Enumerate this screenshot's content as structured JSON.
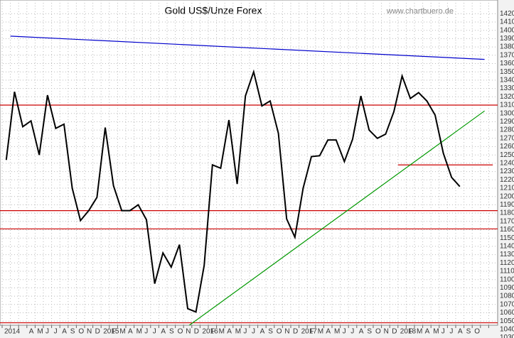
{
  "chart_data": {
    "type": "line",
    "title": "Gold US$/Unze Forex",
    "source": "www.chartbuero.de",
    "categories": [
      "2014",
      null,
      null,
      "A",
      "M",
      "J",
      "J",
      "A",
      "S",
      "O",
      "N",
      "D",
      "2015",
      "F",
      "M",
      "A",
      "M",
      "J",
      "J",
      "A",
      "S",
      "O",
      "N",
      "D",
      "2016",
      "F",
      "M",
      "A",
      "M",
      "J",
      "J",
      "A",
      "S",
      "O",
      "N",
      "D",
      "2017",
      "F",
      "M",
      "A",
      "M",
      "J",
      "J",
      "A",
      "S",
      "O",
      "N",
      "D",
      "2018",
      "F",
      "M",
      "A",
      "M",
      "J",
      "J",
      "A",
      "S",
      "O",
      null,
      null
    ],
    "values": [
      1244,
      1326,
      1284,
      1291,
      1250,
      1322,
      1282,
      1287,
      1210,
      1171,
      1183,
      1199,
      1283,
      1213,
      1183,
      1183,
      1190,
      1172,
      1095,
      1132,
      1115,
      1142,
      1065,
      1061,
      1117,
      1238,
      1234,
      1292,
      1215,
      1321,
      1350,
      1309,
      1315,
      1276,
      1173,
      1151,
      1210,
      1248,
      1249,
      1268,
      1268,
      1242,
      1269,
      1321,
      1280,
      1270,
      1275,
      1302,
      1345,
      1318,
      1325,
      1315,
      1298,
      1252,
      1223,
      1212,
      null,
      null,
      null,
      null
    ],
    "color": "#000000",
    "ylim": [
      1030,
      1420
    ],
    "yticks": [
      1030,
      1040,
      1050,
      1060,
      1070,
      1080,
      1090,
      1100,
      1110,
      1120,
      1130,
      1140,
      1150,
      1160,
      1170,
      1180,
      1190,
      1200,
      1210,
      1220,
      1230,
      1240,
      1250,
      1260,
      1270,
      1280,
      1290,
      1300,
      1310,
      1320,
      1330,
      1340,
      1350,
      1360,
      1370,
      1380,
      1390,
      1400,
      1410,
      1420
    ],
    "grid": true,
    "hlines": [
      {
        "value": 1310,
        "color": "#cc0000"
      },
      {
        "value": 1183,
        "color": "#cc0000"
      },
      {
        "value": 1161,
        "color": "#cc0000"
      },
      {
        "value": 1048,
        "color": "#cc0000"
      }
    ],
    "segments": [
      {
        "from": 48,
        "to": 59,
        "start": 1238,
        "end": 1238,
        "color": "#cc0000"
      },
      {
        "from": 1,
        "to": 58,
        "start": 1393,
        "end": 1365,
        "color": "#0000cc"
      },
      {
        "from": 22,
        "to": 58,
        "start": 1040,
        "end": 1303,
        "color": "#009900"
      }
    ]
  }
}
